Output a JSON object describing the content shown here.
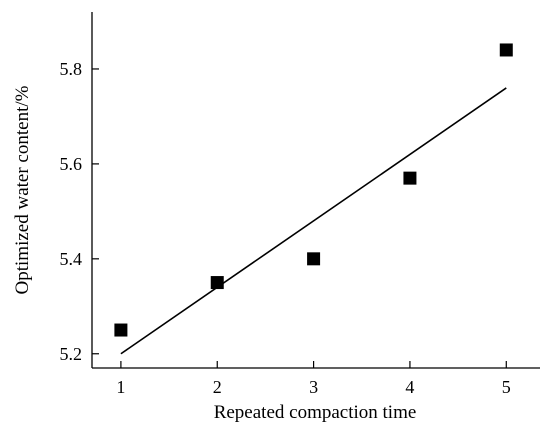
{
  "chart_data": {
    "type": "scatter",
    "title": "",
    "xlabel": "Repeated compaction time",
    "ylabel": "Optimized water content/%",
    "xlim": [
      0.7,
      5.35
    ],
    "ylim": [
      5.17,
      5.92
    ],
    "xticks": [
      1,
      2,
      3,
      4,
      5
    ],
    "yticks": [
      5.2,
      5.4,
      5.6,
      5.8
    ],
    "x_tick_labels": [
      "1",
      "2",
      "3",
      "4",
      "5"
    ],
    "y_tick_labels": [
      "5.2",
      "5.4",
      "5.6",
      "5.8"
    ],
    "grid": false,
    "legend": "none",
    "series": [
      {
        "marker": "square",
        "color": "#000000",
        "x": [
          1,
          2,
          3,
          4,
          5
        ],
        "y": [
          5.25,
          5.35,
          5.4,
          5.57,
          5.84
        ]
      }
    ],
    "fit_line": {
      "color": "#000000",
      "x": [
        1,
        5
      ],
      "y": [
        5.2,
        5.76
      ]
    }
  }
}
